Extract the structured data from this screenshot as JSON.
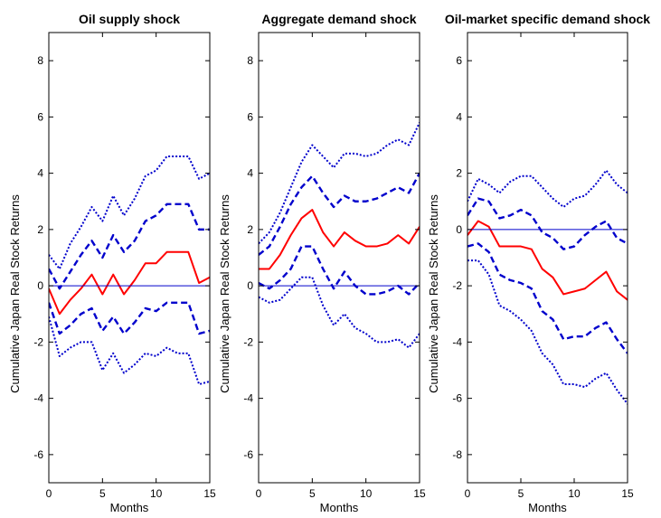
{
  "colors": {
    "response": "#ff0000",
    "bands": "#0000cc",
    "zero_line": "#0000cc",
    "axes": "#000000",
    "background": "#ffffff"
  },
  "chart_data": [
    {
      "type": "line",
      "title": "Oil supply shock",
      "xlabel": "Months",
      "ylabel": "Cumulative Japan Real Stock Returns",
      "xlim": [
        0,
        15
      ],
      "ylim": [
        -7,
        9
      ],
      "xticks": [
        0,
        5,
        10,
        15
      ],
      "yticks": [
        -6,
        -4,
        -2,
        0,
        2,
        4,
        6,
        8
      ],
      "grid": false,
      "x": [
        0,
        1,
        2,
        3,
        4,
        5,
        6,
        7,
        8,
        9,
        10,
        11,
        12,
        13,
        14,
        15
      ],
      "series": [
        {
          "role": "upper-outer",
          "style": "dotted",
          "values": [
            1.1,
            0.6,
            1.5,
            2.1,
            2.8,
            2.3,
            3.2,
            2.5,
            3.1,
            3.9,
            4.1,
            4.6,
            4.6,
            4.6,
            3.8,
            4.0
          ]
        },
        {
          "role": "upper-inner",
          "style": "dashed",
          "values": [
            0.6,
            -0.1,
            0.5,
            1.1,
            1.6,
            1.0,
            1.8,
            1.2,
            1.6,
            2.3,
            2.5,
            2.9,
            2.9,
            2.9,
            2.0,
            2.0
          ]
        },
        {
          "role": "point-estimate",
          "style": "solid",
          "values": [
            -0.1,
            -1.0,
            -0.5,
            -0.1,
            0.4,
            -0.3,
            0.4,
            -0.3,
            0.2,
            0.8,
            0.8,
            1.2,
            1.2,
            1.2,
            0.1,
            0.3
          ]
        },
        {
          "role": "lower-inner",
          "style": "dashed",
          "values": [
            -0.6,
            -1.7,
            -1.4,
            -1.0,
            -0.8,
            -1.6,
            -1.1,
            -1.7,
            -1.3,
            -0.8,
            -0.9,
            -0.6,
            -0.6,
            -0.6,
            -1.7,
            -1.6
          ]
        },
        {
          "role": "lower-outer",
          "style": "dotted",
          "values": [
            -1.1,
            -2.5,
            -2.2,
            -2.0,
            -2.0,
            -3.0,
            -2.4,
            -3.1,
            -2.8,
            -2.4,
            -2.5,
            -2.2,
            -2.4,
            -2.4,
            -3.5,
            -3.4
          ]
        },
        {
          "role": "zero-line",
          "style": "thin",
          "values": [
            0,
            0,
            0,
            0,
            0,
            0,
            0,
            0,
            0,
            0,
            0,
            0,
            0,
            0,
            0,
            0
          ]
        }
      ]
    },
    {
      "type": "line",
      "title": "Aggregate demand shock",
      "xlabel": "Months",
      "ylabel": "Cumulative Japan Real Stock Returns",
      "xlim": [
        0,
        15
      ],
      "ylim": [
        -7,
        9
      ],
      "xticks": [
        0,
        5,
        10,
        15
      ],
      "yticks": [
        -6,
        -4,
        -2,
        0,
        2,
        4,
        6,
        8
      ],
      "grid": false,
      "x": [
        0,
        1,
        2,
        3,
        4,
        5,
        6,
        7,
        8,
        9,
        10,
        11,
        12,
        13,
        14,
        15
      ],
      "series": [
        {
          "role": "upper-outer",
          "style": "dotted",
          "values": [
            1.5,
            1.9,
            2.6,
            3.5,
            4.4,
            5.0,
            4.6,
            4.2,
            4.7,
            4.7,
            4.6,
            4.7,
            5.0,
            5.2,
            5.0,
            5.8
          ]
        },
        {
          "role": "upper-inner",
          "style": "dashed",
          "values": [
            1.1,
            1.4,
            2.1,
            2.9,
            3.5,
            3.9,
            3.3,
            2.8,
            3.2,
            3.0,
            3.0,
            3.1,
            3.3,
            3.5,
            3.3,
            4.0
          ]
        },
        {
          "role": "point-estimate",
          "style": "solid",
          "values": [
            0.6,
            0.6,
            1.1,
            1.8,
            2.4,
            2.7,
            1.9,
            1.4,
            1.9,
            1.6,
            1.4,
            1.4,
            1.5,
            1.8,
            1.5,
            2.1
          ]
        },
        {
          "role": "lower-inner",
          "style": "dashed",
          "values": [
            0.1,
            -0.1,
            0.2,
            0.6,
            1.4,
            1.4,
            0.6,
            -0.1,
            0.5,
            0.0,
            -0.3,
            -0.3,
            -0.2,
            0.0,
            -0.3,
            0.1
          ]
        },
        {
          "role": "lower-outer",
          "style": "dotted",
          "values": [
            -0.4,
            -0.6,
            -0.5,
            -0.1,
            0.3,
            0.3,
            -0.7,
            -1.4,
            -1.0,
            -1.5,
            -1.7,
            -2.0,
            -2.0,
            -1.9,
            -2.2,
            -1.7
          ]
        },
        {
          "role": "zero-line",
          "style": "thin",
          "values": [
            0,
            0,
            0,
            0,
            0,
            0,
            0,
            0,
            0,
            0,
            0,
            0,
            0,
            0,
            0,
            0
          ]
        }
      ]
    },
    {
      "type": "line",
      "title": "Oil-market specific demand shock",
      "xlabel": "Months",
      "ylabel": "Cumulative Japan Real Stock Returns",
      "xlim": [
        0,
        15
      ],
      "ylim": [
        -9,
        7
      ],
      "xticks": [
        0,
        5,
        10,
        15
      ],
      "yticks": [
        -8,
        -6,
        -4,
        -2,
        0,
        2,
        4,
        6
      ],
      "grid": false,
      "x": [
        0,
        1,
        2,
        3,
        4,
        5,
        6,
        7,
        8,
        9,
        10,
        11,
        12,
        13,
        14,
        15
      ],
      "series": [
        {
          "role": "upper-outer",
          "style": "dotted",
          "values": [
            1.0,
            1.8,
            1.6,
            1.3,
            1.7,
            1.9,
            1.9,
            1.5,
            1.1,
            0.8,
            1.1,
            1.2,
            1.6,
            2.1,
            1.6,
            1.3
          ]
        },
        {
          "role": "upper-inner",
          "style": "dashed",
          "values": [
            0.5,
            1.1,
            1.0,
            0.4,
            0.5,
            0.7,
            0.5,
            -0.1,
            -0.3,
            -0.7,
            -0.6,
            -0.2,
            0.1,
            0.3,
            -0.3,
            -0.5
          ]
        },
        {
          "role": "point-estimate",
          "style": "solid",
          "values": [
            -0.2,
            0.3,
            0.1,
            -0.6,
            -0.6,
            -0.6,
            -0.7,
            -1.4,
            -1.7,
            -2.3,
            -2.2,
            -2.1,
            -1.8,
            -1.5,
            -2.2,
            -2.5
          ]
        },
        {
          "role": "lower-inner",
          "style": "dashed",
          "values": [
            -0.6,
            -0.5,
            -0.8,
            -1.6,
            -1.8,
            -1.9,
            -2.1,
            -2.9,
            -3.2,
            -3.9,
            -3.8,
            -3.8,
            -3.5,
            -3.3,
            -3.9,
            -4.4
          ]
        },
        {
          "role": "lower-outer",
          "style": "dotted",
          "values": [
            -1.1,
            -1.1,
            -1.6,
            -2.7,
            -2.9,
            -3.2,
            -3.6,
            -4.4,
            -4.8,
            -5.5,
            -5.5,
            -5.6,
            -5.3,
            -5.1,
            -5.7,
            -6.2
          ]
        },
        {
          "role": "zero-line",
          "style": "thin",
          "values": [
            0,
            0,
            0,
            0,
            0,
            0,
            0,
            0,
            0,
            0,
            0,
            0,
            0,
            0,
            0,
            0
          ]
        }
      ]
    }
  ]
}
